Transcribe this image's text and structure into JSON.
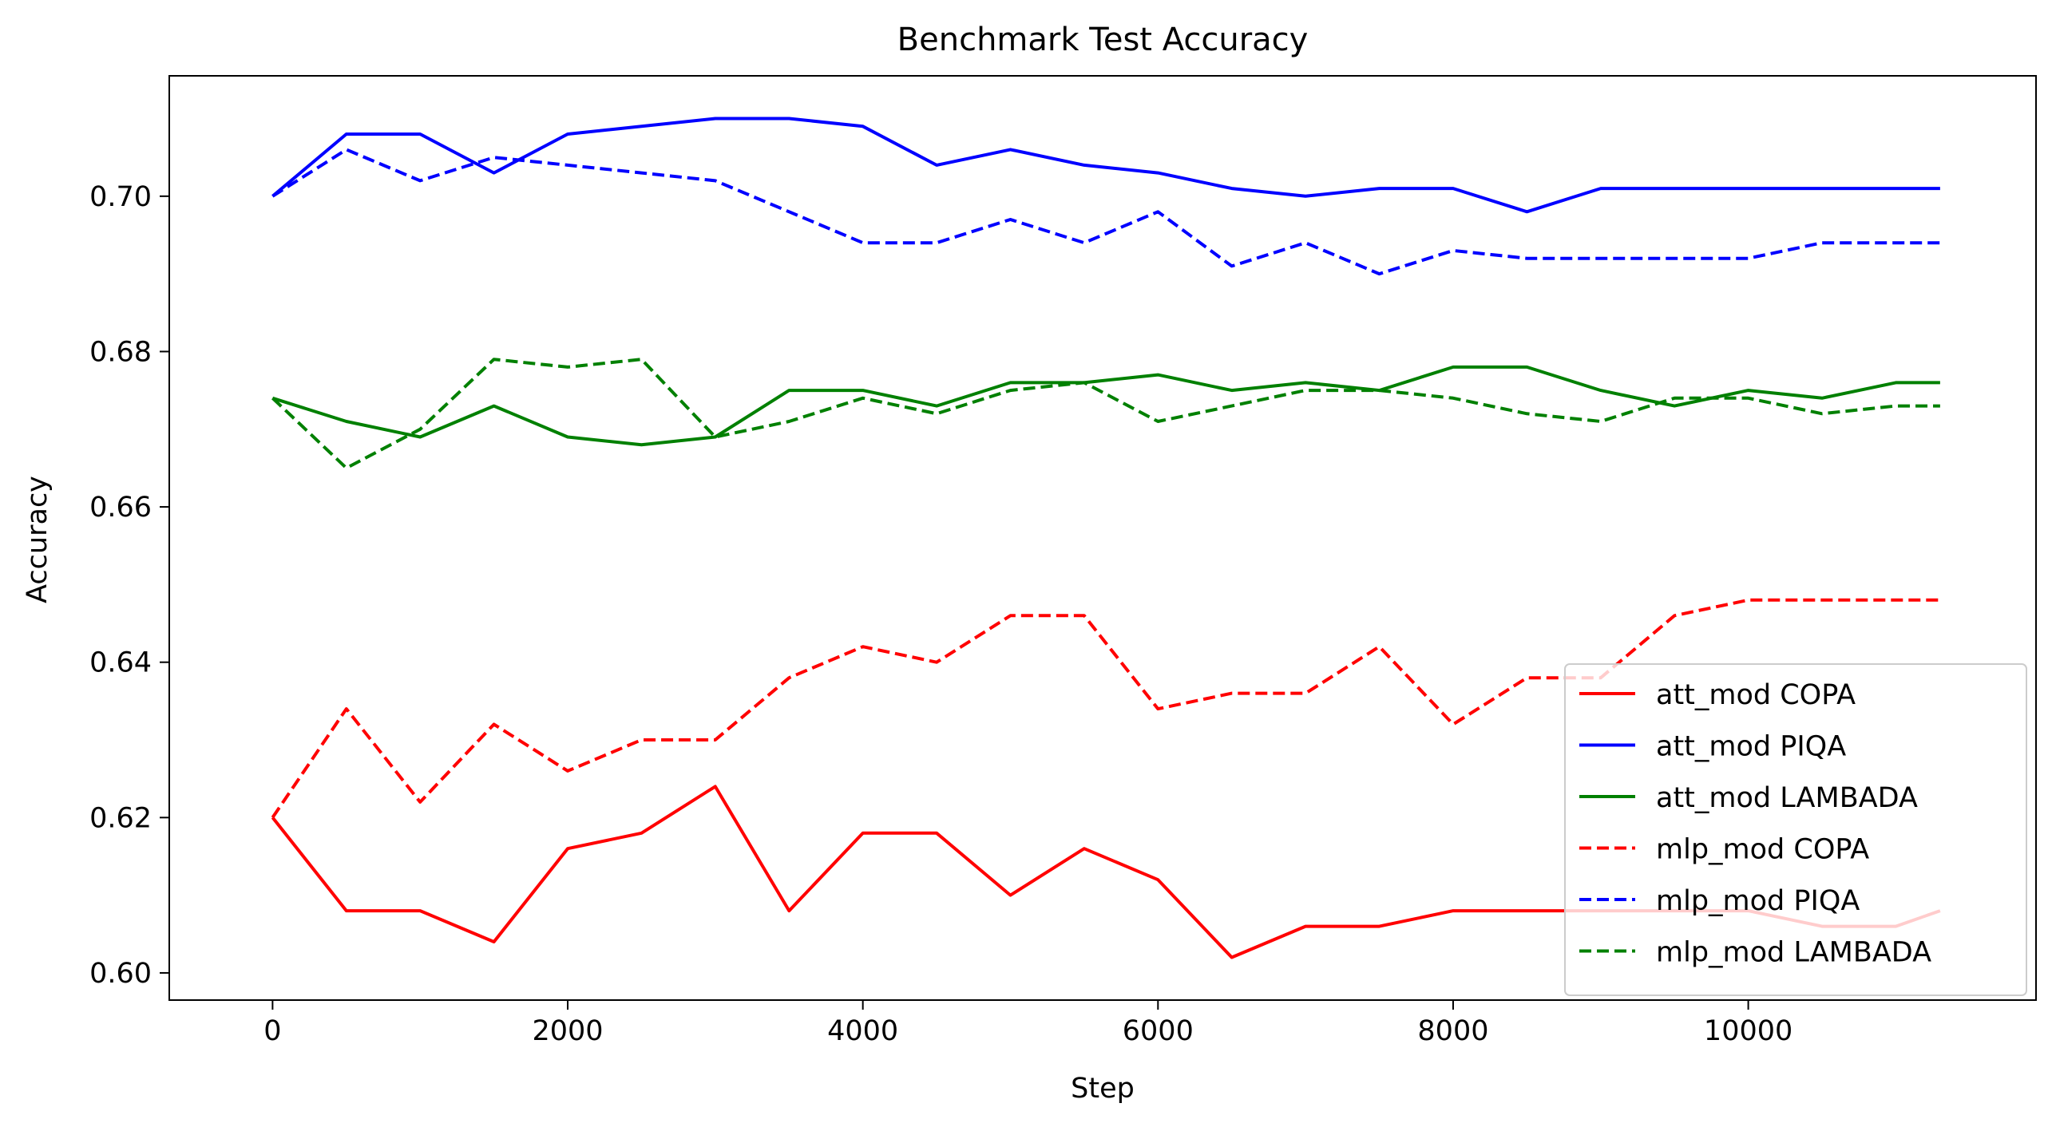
{
  "chart_data": {
    "type": "line",
    "title": "Benchmark Test Accuracy",
    "xlabel": "Step",
    "ylabel": "Accuracy",
    "xlim": [
      -700,
      11950
    ],
    "ylim": [
      0.5965,
      0.7155
    ],
    "xticks": [
      0,
      2000,
      4000,
      6000,
      8000,
      10000
    ],
    "xtick_labels": [
      "0",
      "2000",
      "4000",
      "6000",
      "8000",
      "10000"
    ],
    "yticks": [
      0.6,
      0.62,
      0.64,
      0.66,
      0.68,
      0.7
    ],
    "ytick_labels": [
      "0.60",
      "0.62",
      "0.64",
      "0.66",
      "0.68",
      "0.70"
    ],
    "grid": false,
    "legend_position": "lower right",
    "x": [
      0,
      500,
      1000,
      1500,
      2000,
      2500,
      3000,
      3500,
      4000,
      4500,
      5000,
      5500,
      6000,
      6500,
      7000,
      7500,
      8000,
      8500,
      9000,
      9500,
      10000,
      10500,
      11000,
      11300
    ],
    "series": [
      {
        "name": "att_mod COPA",
        "color": "#ff0000",
        "dash": "solid",
        "values": [
          0.62,
          0.608,
          0.608,
          0.604,
          0.616,
          0.618,
          0.624,
          0.608,
          0.618,
          0.618,
          0.61,
          0.616,
          0.612,
          0.602,
          0.606,
          0.606,
          0.608,
          0.608,
          0.608,
          0.608,
          0.608,
          0.606,
          0.606,
          0.608
        ]
      },
      {
        "name": "att_mod PIQA",
        "color": "#0000ff",
        "dash": "solid",
        "values": [
          0.7,
          0.708,
          0.708,
          0.703,
          0.708,
          0.709,
          0.71,
          0.71,
          0.709,
          0.704,
          0.706,
          0.704,
          0.703,
          0.701,
          0.7,
          0.701,
          0.701,
          0.698,
          0.701,
          0.701,
          0.701,
          0.701,
          0.701,
          0.701
        ]
      },
      {
        "name": "att_mod LAMBADA",
        "color": "#008000",
        "dash": "solid",
        "values": [
          0.674,
          0.671,
          0.669,
          0.673,
          0.669,
          0.668,
          0.669,
          0.675,
          0.675,
          0.673,
          0.676,
          0.676,
          0.677,
          0.675,
          0.676,
          0.675,
          0.678,
          0.678,
          0.675,
          0.673,
          0.675,
          0.674,
          0.676,
          0.676
        ]
      },
      {
        "name": "mlp_mod COPA",
        "color": "#ff0000",
        "dash": "dashed",
        "values": [
          0.62,
          0.634,
          0.622,
          0.632,
          0.626,
          0.63,
          0.63,
          0.638,
          0.642,
          0.64,
          0.646,
          0.646,
          0.634,
          0.636,
          0.636,
          0.642,
          0.632,
          0.638,
          0.638,
          0.646,
          0.648,
          0.648,
          0.648,
          0.648
        ]
      },
      {
        "name": "mlp_mod PIQA",
        "color": "#0000ff",
        "dash": "dashed",
        "values": [
          0.7,
          0.706,
          0.702,
          0.705,
          0.704,
          0.703,
          0.702,
          0.698,
          0.694,
          0.694,
          0.697,
          0.694,
          0.698,
          0.691,
          0.694,
          0.69,
          0.693,
          0.692,
          0.692,
          0.692,
          0.692,
          0.694,
          0.694,
          0.694
        ]
      },
      {
        "name": "mlp_mod LAMBADA",
        "color": "#008000",
        "dash": "dashed",
        "values": [
          0.674,
          0.665,
          0.67,
          0.679,
          0.678,
          0.679,
          0.669,
          0.671,
          0.674,
          0.672,
          0.675,
          0.676,
          0.671,
          0.673,
          0.675,
          0.675,
          0.674,
          0.672,
          0.671,
          0.674,
          0.674,
          0.672,
          0.673,
          0.673
        ]
      }
    ]
  }
}
